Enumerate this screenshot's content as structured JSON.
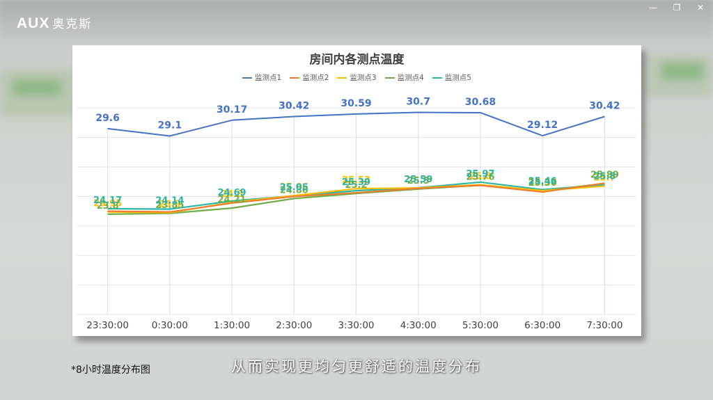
{
  "app": {
    "brand": "AUX",
    "brand_cn": "奥克斯"
  },
  "window_controls": {
    "minimize": "—",
    "restore": "❐",
    "close": "✕"
  },
  "chart_data": {
    "type": "line",
    "title": "房间内各测点温度",
    "categories": [
      "23:30:00",
      "0:30:00",
      "1:30:00",
      "2:30:00",
      "3:30:00",
      "4:30:00",
      "5:30:00",
      "6:30:00",
      "7:30:00"
    ],
    "ylim": [
      17,
      32
    ],
    "grid": true,
    "legend_position": "top",
    "series": [
      {
        "name": "监测点1",
        "color": "#4472C4",
        "values": [
          29.6,
          29.1,
          30.17,
          30.42,
          30.59,
          30.7,
          30.68,
          29.12,
          30.42
        ],
        "labels": true
      },
      {
        "name": "监测点2",
        "color": "#ED7D31",
        "values": [
          24.0,
          23.95,
          24.55,
          25.0,
          25.25,
          25.55,
          25.75,
          25.3,
          25.9
        ],
        "labels": false
      },
      {
        "name": "监测点3",
        "color": "#FFC000",
        "values": [
          23.95,
          23.9,
          24.6,
          25.06,
          25.53,
          25.58,
          25.8,
          25.39,
          25.7
        ],
        "labels": true
      },
      {
        "name": "监测点4",
        "color": "#70AD47",
        "values": [
          23.8,
          23.85,
          24.21,
          24.86,
          25.2,
          25.5,
          25.76,
          25.36,
          25.89
        ],
        "labels": true
      },
      {
        "name": "监测点5",
        "color": "#2AB5A5",
        "values": [
          24.17,
          24.14,
          24.69,
          25.05,
          25.39,
          25.59,
          25.97,
          25.46,
          25.8
        ],
        "labels": true
      }
    ]
  },
  "footnote": "*8小时温度分布图",
  "subtitle": "从而实现更均匀更舒适的温度分布"
}
